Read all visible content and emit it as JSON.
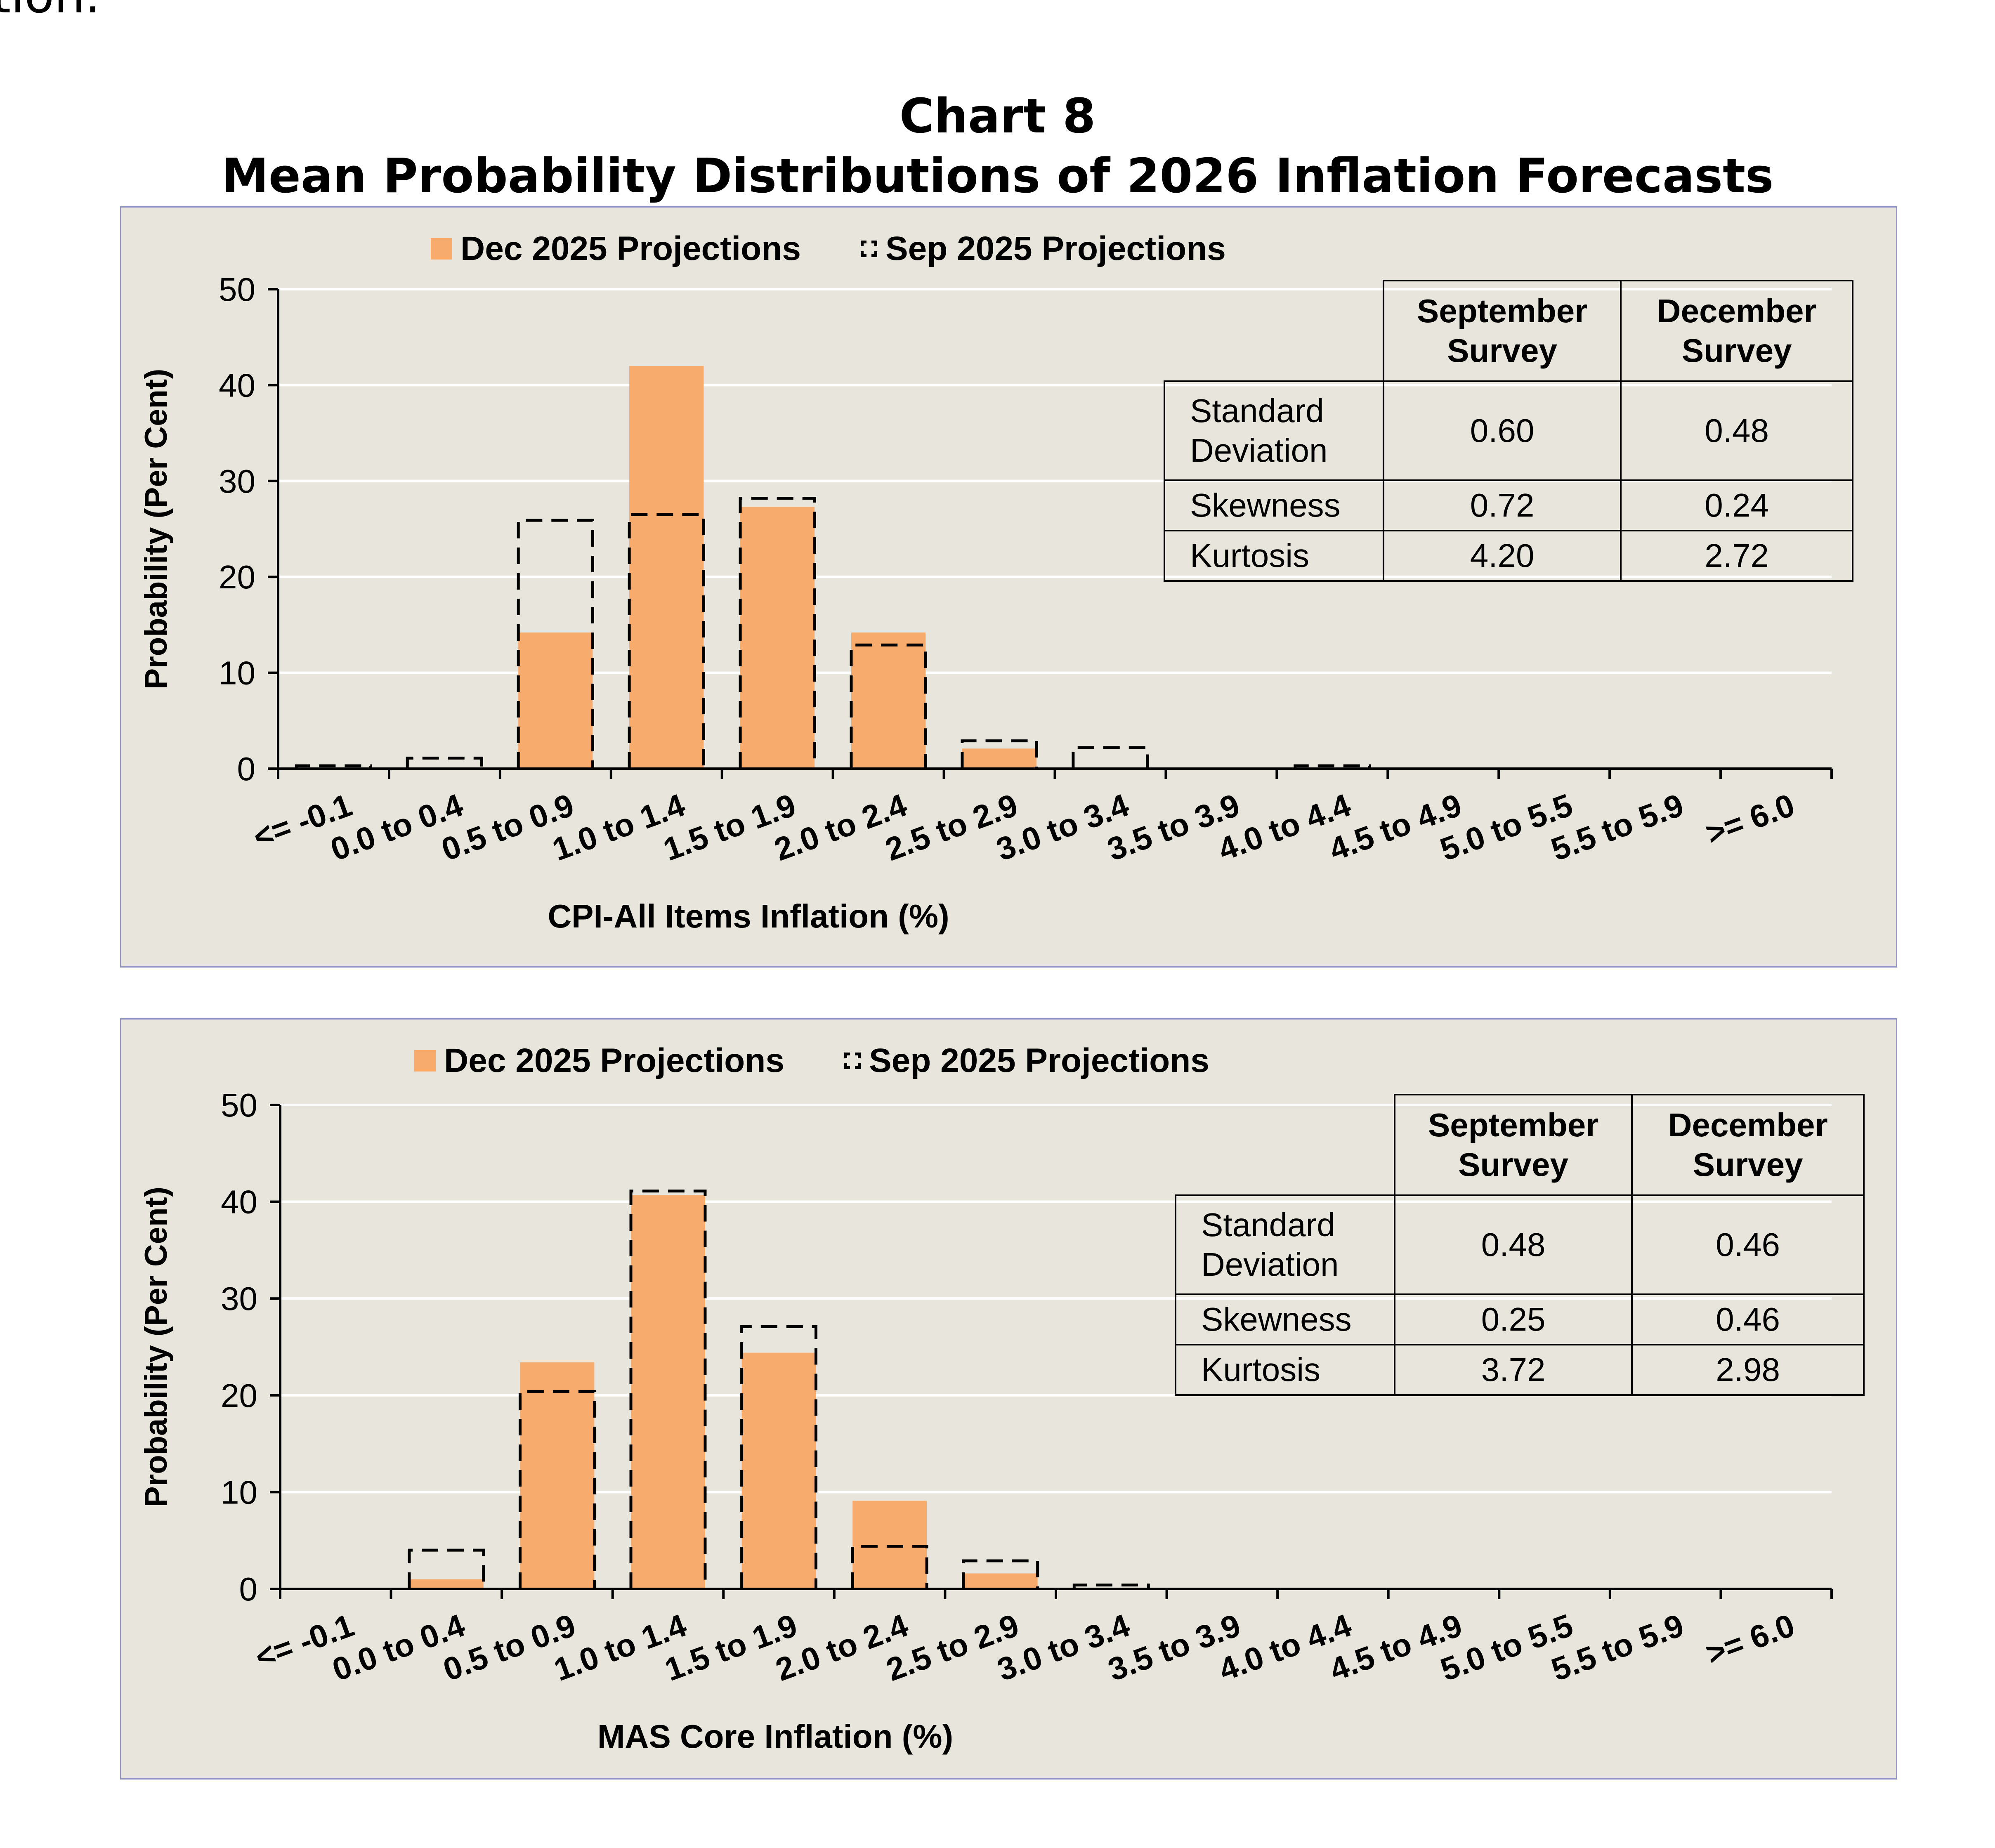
{
  "page_fragment": "tion.",
  "title_line1": "Chart 8",
  "title_line2": "Mean Probability Distributions of 2026 Inflation Forecasts",
  "colors": {
    "dec_fill": "#f7ab6c",
    "panel_bg": "#e8e6dc",
    "panel_border": "#8f93c8",
    "grid": "#ffffff"
  },
  "chart_data": [
    {
      "type": "bar",
      "xlabel": "CPI-All Items Inflation (%)",
      "ylabel": "Probability (Per Cent)",
      "ylim": [
        0,
        50
      ],
      "yticks": [
        0,
        10,
        20,
        30,
        40,
        50
      ],
      "grid": true,
      "legend_position": "top",
      "categories": [
        "<= -0.1",
        "0.0 to 0.4",
        "0.5 to 0.9",
        "1.0 to 1.4",
        "1.5 to 1.9",
        "2.0 to 2.4",
        "2.5 to 2.9",
        "3.0 to 3.4",
        "3.5 to 3.9",
        "4.0 to 4.4",
        "4.5 to 4.9",
        "5.0 to 5.5",
        "5.5 to 5.9",
        ">= 6.0"
      ],
      "series": [
        {
          "name": "Dec 2025 Projections",
          "style": "filled",
          "values": [
            0,
            0,
            14.2,
            42,
            27.3,
            14.2,
            2.1,
            0,
            0,
            0,
            0,
            0,
            0,
            0
          ]
        },
        {
          "name": "Sep 2025 Projections",
          "style": "dashed-outline",
          "values": [
            0.3,
            1.1,
            25.9,
            26.5,
            28.2,
            12.9,
            2.9,
            2.2,
            0,
            0.3,
            0,
            0,
            0,
            0
          ]
        }
      ],
      "stats_table": {
        "headers": [
          "September Survey",
          "December Survey"
        ],
        "rows": [
          {
            "label": "Standard Deviation",
            "september": "0.60",
            "december": "0.48"
          },
          {
            "label": "Skewness",
            "september": "0.72",
            "december": "0.24"
          },
          {
            "label": "Kurtosis",
            "september": "4.20",
            "december": "2.72"
          }
        ]
      }
    },
    {
      "type": "bar",
      "xlabel": "MAS Core Inflation (%)",
      "ylabel": "Probability (Per Cent)",
      "ylim": [
        0,
        50
      ],
      "yticks": [
        0,
        10,
        20,
        30,
        40,
        50
      ],
      "grid": true,
      "legend_position": "top",
      "categories": [
        "<= -0.1",
        "0.0 to 0.4",
        "0.5 to 0.9",
        "1.0 to 1.4",
        "1.5 to 1.9",
        "2.0 to 2.4",
        "2.5 to 2.9",
        "3.0 to 3.4",
        "3.5 to 3.9",
        "4.0 to 4.4",
        "4.5 to 4.9",
        "5.0 to 5.5",
        "5.5 to 5.9",
        ">= 6.0"
      ],
      "series": [
        {
          "name": "Dec 2025 Projections",
          "style": "filled",
          "values": [
            0,
            1.0,
            23.4,
            40.7,
            24.4,
            9.1,
            1.6,
            0,
            0,
            0,
            0,
            0,
            0,
            0
          ]
        },
        {
          "name": "Sep 2025 Projections",
          "style": "dashed-outline",
          "values": [
            0,
            4.0,
            20.4,
            41.1,
            27.1,
            4.4,
            2.9,
            0.4,
            0,
            0,
            0,
            0,
            0,
            0
          ]
        }
      ],
      "stats_table": {
        "headers": [
          "September Survey",
          "December Survey"
        ],
        "rows": [
          {
            "label": "Standard Deviation",
            "september": "0.48",
            "december": "0.46"
          },
          {
            "label": "Skewness",
            "september": "0.25",
            "december": "0.46"
          },
          {
            "label": "Kurtosis",
            "september": "3.72",
            "december": "2.98"
          }
        ]
      }
    }
  ]
}
